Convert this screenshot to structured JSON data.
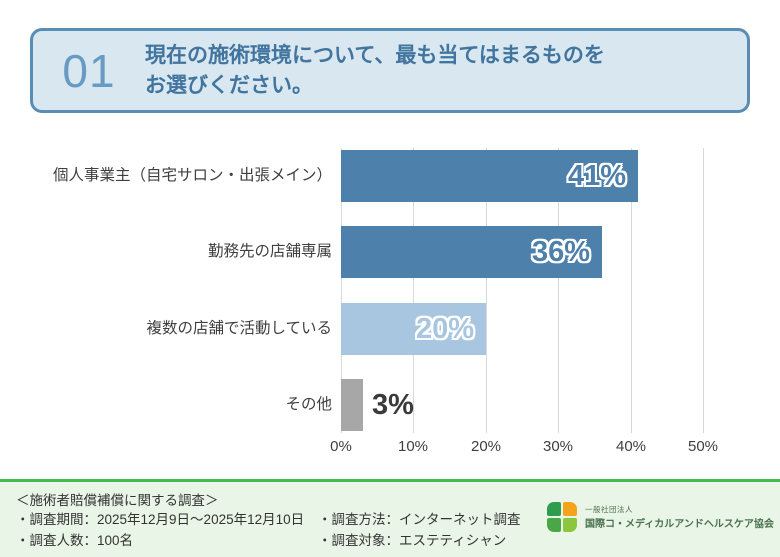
{
  "header": {
    "number": "01",
    "question_line1": "現在の施術環境について、最も当てはまるものを",
    "question_line2": "お選びください。"
  },
  "chart_data": {
    "type": "bar",
    "orientation": "horizontal",
    "title": "現在の施術環境について、最も当てはまるものをお選びください。",
    "categories": [
      "個人事業主（自宅サロン・出張メイン）",
      "勤務先の店舗専属",
      "複数の店舗で活動している",
      "その他"
    ],
    "values": [
      41,
      36,
      20,
      3
    ],
    "value_labels": [
      "41%",
      "36%",
      "20%",
      "3%"
    ],
    "bar_colors": [
      "#4e80ac",
      "#4e80ac",
      "#a9c6e0",
      "#a7a7a7"
    ],
    "xlim": [
      0,
      50
    ],
    "x_ticks": [
      "0%",
      "10%",
      "20%",
      "30%",
      "40%",
      "50%"
    ],
    "grid": true,
    "legend": false
  },
  "footer": {
    "survey_title": "＜施術者賠償補償に関する調査＞",
    "items_left": [
      "・調査期間：2025年12月9日～2025年12月10日",
      "・調査人数：100名"
    ],
    "items_right": [
      "・調査方法：インターネット調査",
      "・調査対象：エステティシャン"
    ],
    "logo": {
      "org_type": "一般社団法人",
      "org_name": "国際コ・メディカルアンドヘルスケア協会"
    }
  },
  "colors": {
    "header_fill": "#d8e7f0",
    "header_border": "#5a8db4",
    "header_number": "#679bc3",
    "header_text": "#41749e",
    "bar_primary": "#4e80ac",
    "bar_light": "#a9c6e0",
    "bar_gray": "#a7a7a7",
    "gridline": "#d9d9d9",
    "footer_bg": "#e9f5e6",
    "footer_line": "#43bb4f",
    "logo_green_dark": "#2e9d4d",
    "logo_orange": "#f5a31c",
    "logo_green_mid": "#4aa748",
    "logo_green_light": "#8cc63e",
    "logo_text": "#4a7150"
  }
}
